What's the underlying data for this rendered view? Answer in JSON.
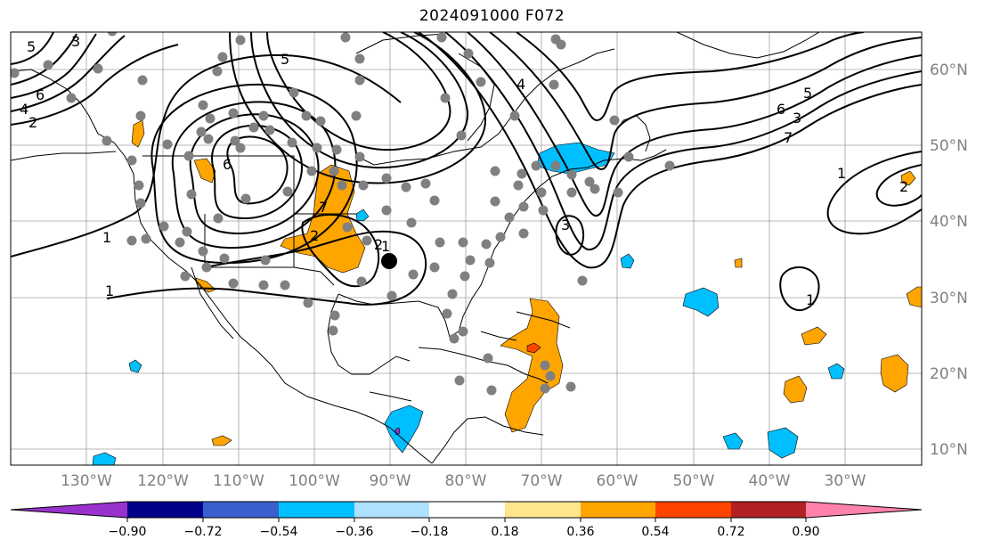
{
  "title": "2024091000 F072",
  "lon_labels": [
    "130°W",
    "120°W",
    "110°W",
    "100°W",
    "90°W",
    "80°W",
    "70°W",
    "60°W",
    "50°W",
    "40°W",
    "30°W"
  ],
  "lat_labels": [
    "60°N",
    "50°N",
    "40°N",
    "30°N",
    "20°N",
    "10°N"
  ],
  "colorbar": {
    "ticks": [
      "−0.90",
      "−0.72",
      "−0.54",
      "−0.36",
      "−0.18",
      "0.18",
      "0.36",
      "0.54",
      "0.72",
      "0.90"
    ],
    "colors": [
      "#9932cc",
      "#00008b",
      "#3a5fcd",
      "#00bfff",
      "#b0e0ff",
      "#ffffff",
      "#ffe68c",
      "#ffa500",
      "#ff4500",
      "#b22222",
      "#ff82ab"
    ]
  },
  "contour_labels": [
    "3",
    "5",
    "4",
    "2",
    "6",
    "1",
    "5",
    "7",
    "6",
    "1",
    "2",
    "1",
    "2",
    "3",
    "1",
    "3",
    "7",
    "6",
    "5",
    "4",
    "1",
    "2"
  ],
  "marker_color": "#808080",
  "center_marker": "storm-center"
}
